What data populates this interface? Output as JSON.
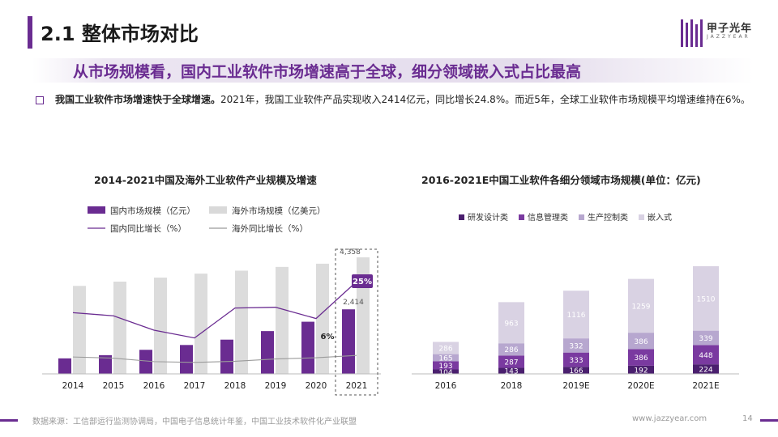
{
  "header": {
    "title": "2.1 整体市场对比",
    "subtitle": "从市场规模看，国内工业软件市场增速高于全球，细分领域嵌入式占比最高",
    "logo_text": "甲子光年",
    "logo_sub": "JAZZYEAR"
  },
  "body": {
    "lead_bold": "我国工业软件市场增速快于全球增速。",
    "lead_rest": "2021年，我国工业软件产品实现收入2414亿元，同比增长24.8%。而近5年，全球工业软件市场规模平均增速维持在6%。"
  },
  "chart_data": [
    {
      "type": "bar",
      "title": "2014-2021中国及海外工业软件产业规模及增速",
      "categories": [
        "2014",
        "2015",
        "2016",
        "2017",
        "2018",
        "2019",
        "2020",
        "2021"
      ],
      "legend": [
        "国内市场规模（亿元）",
        "海外市场规模（亿美元）",
        "国内同比增长（%）",
        "海外同比增长（%）"
      ],
      "series": [
        {
          "name": "国内市场规模（亿元）",
          "kind": "bar",
          "values": [
            580,
            700,
            900,
            1080,
            1280,
            1600,
            1950,
            2414
          ]
        },
        {
          "name": "海外市场规模（亿美元）",
          "kind": "bar",
          "values": [
            3290,
            3450,
            3600,
            3750,
            3860,
            4000,
            4120,
            4358
          ]
        },
        {
          "name": "国内同比增长（%）",
          "kind": "line",
          "values": [
            17,
            16.2,
            12.5,
            10.5,
            18.2,
            18.4,
            15.5,
            25
          ]
        },
        {
          "name": "海外同比增长（%）",
          "kind": "line",
          "values": [
            5.6,
            5.3,
            4.4,
            4.2,
            4.5,
            5.1,
            5.4,
            6
          ]
        }
      ],
      "data_labels": {
        "overseas_2021": "4,358",
        "domestic_2021": "2,414",
        "domestic_growth_2021": "25%",
        "overseas_growth_2021": "6%"
      },
      "highlight_category": "2021"
    },
    {
      "type": "bar",
      "stacked": true,
      "title": "2016-2021E中国工业软件各细分领域市场规模(单位：亿元)",
      "categories": [
        "2016",
        "2018",
        "2019E",
        "2020E",
        "2021E"
      ],
      "series": [
        {
          "name": "研发设计类",
          "values": [
            104,
            143,
            166,
            192,
            224
          ]
        },
        {
          "name": "信息管理类",
          "values": [
            193,
            287,
            333,
            386,
            448
          ]
        },
        {
          "name": "生产控制类",
          "values": [
            165,
            286,
            332,
            386,
            339
          ]
        },
        {
          "name": "嵌入式",
          "values": [
            286,
            963,
            1116,
            1259,
            1510
          ]
        }
      ],
      "colors": [
        "#4a1f6e",
        "#7a3aa0",
        "#b7a7cf",
        "#d9d2e3"
      ]
    }
  ],
  "footer": {
    "source": "数据来源：工信部运行监测协调局，中国电子信息统计年鉴，中国工业技术软件化产业联盟",
    "site": "www.jazzyear.com",
    "page": "14"
  }
}
